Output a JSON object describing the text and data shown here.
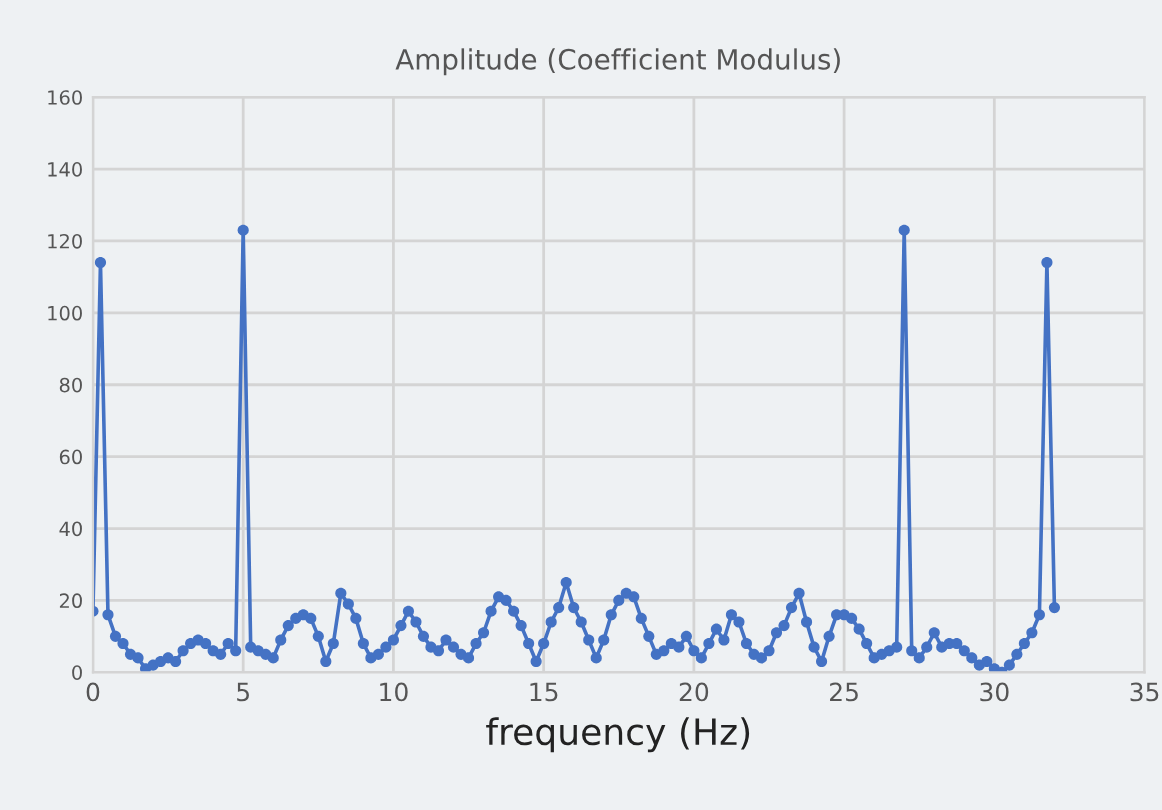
{
  "chart_data": {
    "type": "line",
    "title": "Amplitude (Coefficient Modulus)",
    "xlabel": "frequency (Hz)",
    "x": [
      0,
      0.25,
      0.5,
      0.75,
      1,
      1.25,
      1.5,
      1.75,
      2,
      2.25,
      2.5,
      2.75,
      3,
      3.25,
      3.5,
      3.75,
      4,
      4.25,
      4.5,
      4.75,
      5,
      5.25,
      5.5,
      5.75,
      6,
      6.25,
      6.5,
      6.75,
      7,
      7.25,
      7.5,
      7.75,
      8,
      8.25,
      8.5,
      8.75,
      9,
      9.25,
      9.5,
      9.75,
      10,
      10.25,
      10.5,
      10.75,
      11,
      11.25,
      11.5,
      11.75,
      12,
      12.25,
      12.5,
      12.75,
      13,
      13.25,
      13.5,
      13.75,
      14,
      14.25,
      14.5,
      14.75,
      15,
      15.25,
      15.5,
      15.75,
      16,
      16.25,
      16.5,
      16.75,
      17,
      17.25,
      17.5,
      17.75,
      18,
      18.25,
      18.5,
      18.75,
      19,
      19.25,
      19.5,
      19.75,
      20,
      20.25,
      20.5,
      20.75,
      21,
      21.25,
      21.5,
      21.75,
      22,
      22.25,
      22.5,
      22.75,
      23,
      23.25,
      23.5,
      23.75,
      24,
      24.25,
      24.5,
      24.75,
      25,
      25.25,
      25.5,
      25.75,
      26,
      26.25,
      26.5,
      26.75,
      27,
      27.25,
      27.5,
      27.75,
      28,
      28.25,
      28.5,
      28.75,
      29,
      29.25,
      29.5,
      29.75,
      30,
      30.25,
      30.5,
      30.75,
      31,
      31.25,
      31.5,
      31.75,
      32
    ],
    "series": [
      {
        "color": "#4472c4",
        "values": [
          17,
          114,
          16,
          10,
          8,
          5,
          4,
          1,
          2,
          3,
          4,
          3,
          6,
          8,
          9,
          8,
          6,
          5,
          8,
          6,
          123,
          7,
          6,
          5,
          4,
          9,
          13,
          15,
          16,
          15,
          10,
          3,
          8,
          22,
          19,
          15,
          8,
          4,
          5,
          7,
          9,
          13,
          17,
          14,
          10,
          7,
          6,
          9,
          7,
          5,
          4,
          8,
          11,
          17,
          21,
          20,
          17,
          13,
          8,
          3,
          8,
          14,
          18,
          25,
          18,
          14,
          9,
          4,
          9,
          16,
          20,
          22,
          21,
          15,
          10,
          5,
          6,
          8,
          7,
          10,
          6,
          4,
          8,
          12,
          9,
          16,
          14,
          8,
          5,
          4,
          6,
          11,
          13,
          18,
          22,
          14,
          7,
          3,
          10,
          16,
          16,
          15,
          12,
          8,
          4,
          5,
          6,
          7,
          123,
          6,
          4,
          7,
          11,
          7,
          8,
          8,
          6,
          4,
          2,
          3,
          1,
          0,
          2,
          5,
          8,
          11,
          16,
          114,
          18
        ]
      }
    ],
    "xlim": [
      0,
      35
    ],
    "ylim": [
      0,
      160
    ],
    "xticks": [
      0,
      5,
      10,
      15,
      20,
      25,
      30,
      35
    ],
    "yticks": [
      0,
      20,
      40,
      60,
      80,
      100,
      120,
      140,
      160
    ],
    "grid": true,
    "marker": "circle",
    "line_style": "solid",
    "legend": false
  }
}
